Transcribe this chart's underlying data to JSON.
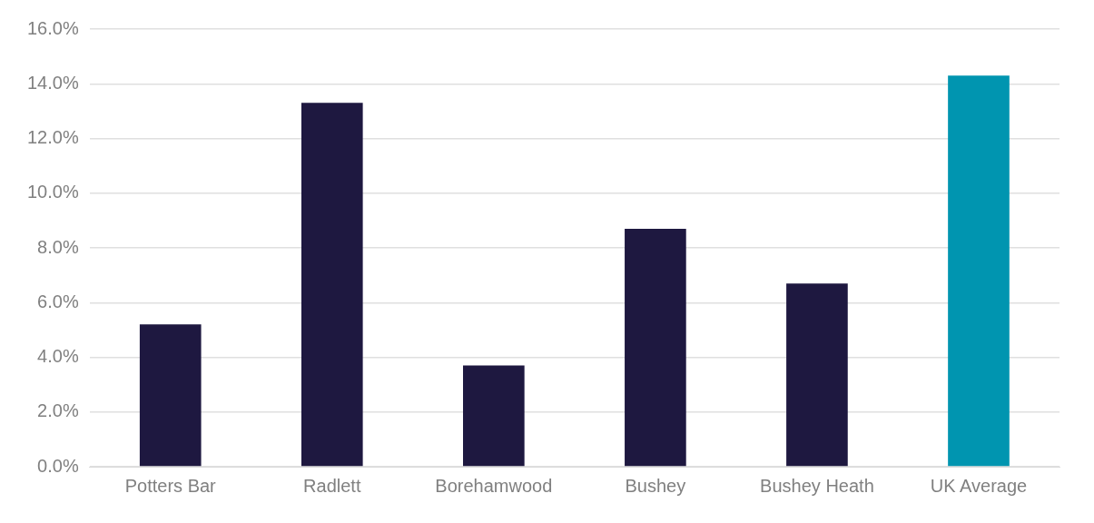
{
  "chart_data": {
    "type": "bar",
    "categories": [
      "Potters Bar",
      "Radlett",
      "Borehamwood",
      "Bushey",
      "Bushey Heath",
      "UK Average"
    ],
    "values": [
      5.2,
      13.3,
      3.7,
      8.7,
      6.7,
      14.3
    ],
    "colors": [
      "#1e1840",
      "#1e1840",
      "#1e1840",
      "#1e1840",
      "#1e1840",
      "#0095b0"
    ],
    "ylim": [
      0,
      16
    ],
    "yticks": [
      {
        "value": 0,
        "label": "0.0%"
      },
      {
        "value": 2,
        "label": "2.0%"
      },
      {
        "value": 4,
        "label": "4.0%"
      },
      {
        "value": 6,
        "label": "6.0%"
      },
      {
        "value": 8,
        "label": "8.0%"
      },
      {
        "value": 10,
        "label": "10.0%"
      },
      {
        "value": 12,
        "label": "12.0%"
      },
      {
        "value": 14,
        "label": "14.0%"
      },
      {
        "value": 16,
        "label": "16.0%"
      }
    ],
    "grid": "y",
    "legend": false
  }
}
